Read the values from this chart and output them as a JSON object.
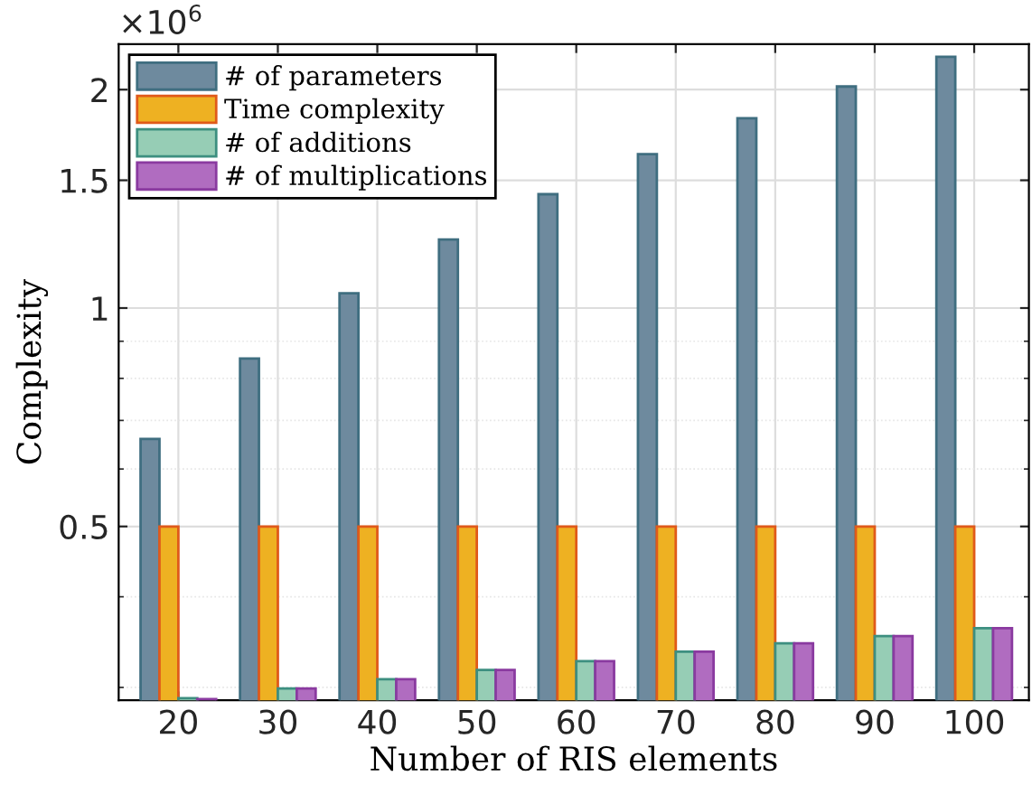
{
  "chart_data": {
    "type": "bar",
    "xlabel": "Number of RIS elements",
    "ylabel": "Complexity",
    "categories": [
      "20",
      "30",
      "40",
      "50",
      "60",
      "70",
      "80",
      "90",
      "100"
    ],
    "series": [
      {
        "name": "# of parameters",
        "color": "#6e8a9e",
        "values": [
          0.66,
          0.852,
          1.048,
          1.243,
          1.435,
          1.63,
          1.827,
          2.02,
          2.22
        ]
      },
      {
        "name": "Time complexity",
        "color": "#eeb122",
        "values": [
          0.5,
          0.5,
          0.5,
          0.5,
          0.5,
          0.5,
          0.5,
          0.5,
          0.5
        ]
      },
      {
        "name": "# of additions",
        "color": "#96cdb5",
        "values": [
          0.29,
          0.299,
          0.308,
          0.317,
          0.326,
          0.336,
          0.345,
          0.353,
          0.362
        ]
      },
      {
        "name": "# of multiplications",
        "color": "#b06cc0",
        "values": [
          0.289,
          0.299,
          0.308,
          0.317,
          0.326,
          0.336,
          0.345,
          0.353,
          0.362
        ]
      }
    ],
    "log": "y",
    "ylim": [
      0.288,
      2.31
    ],
    "yticks": [
      0.5,
      1,
      1.5,
      2
    ],
    "annotations": [
      "×10$^{6}$"
    ],
    "grid": true,
    "legend": "top left"
  }
}
